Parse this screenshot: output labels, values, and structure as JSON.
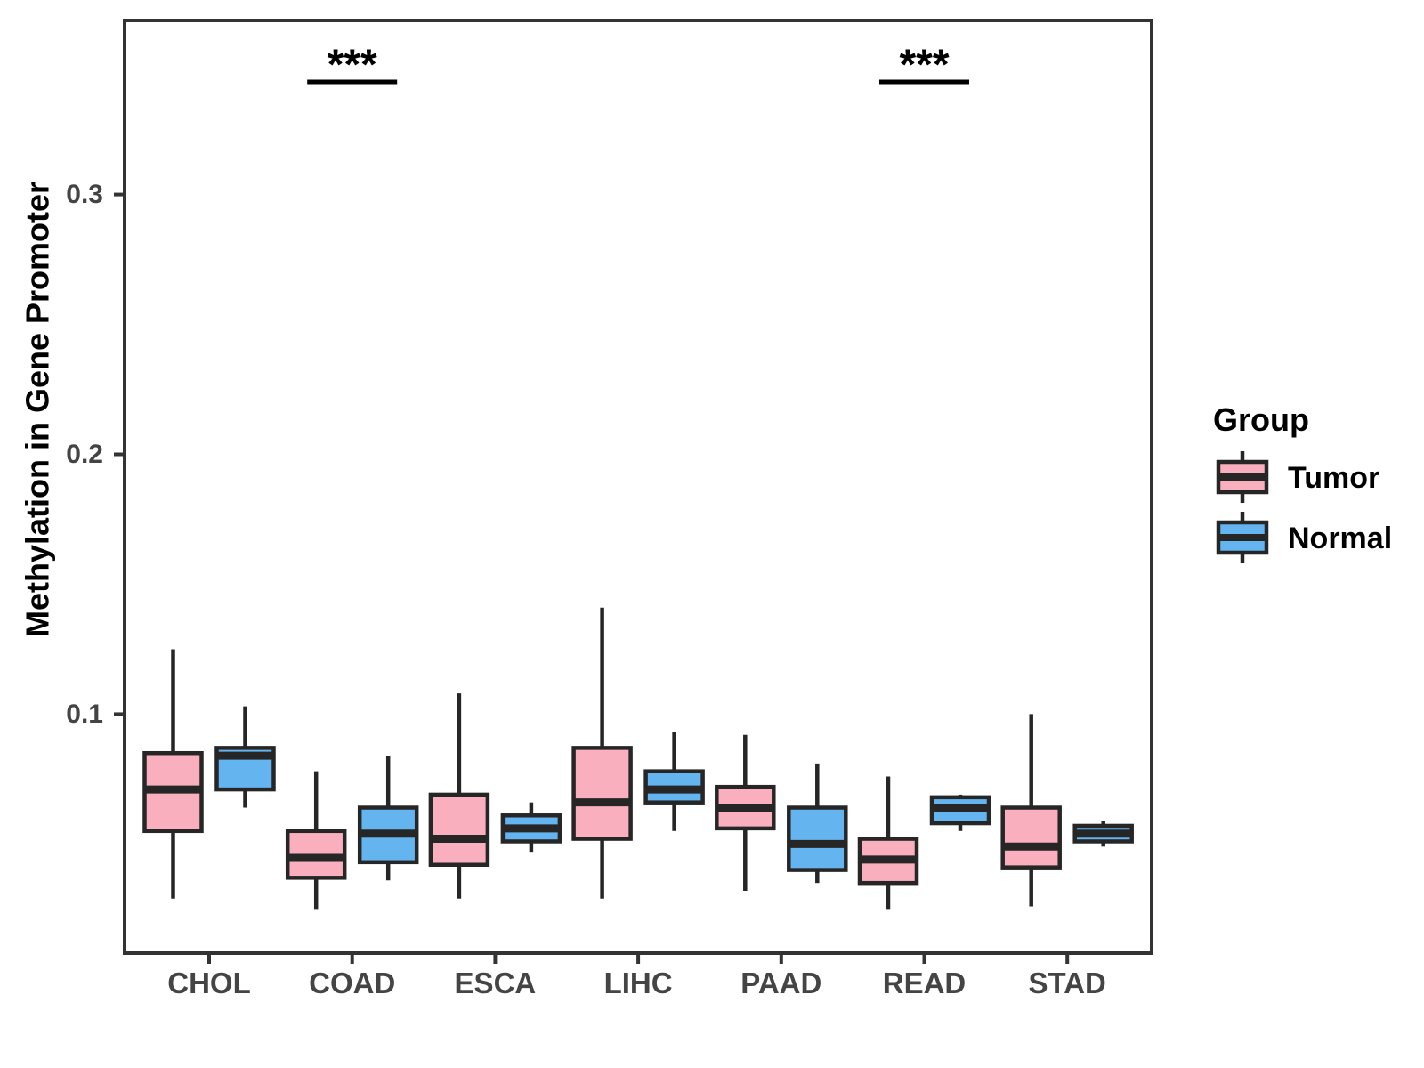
{
  "figure": {
    "background": "#FFFFFF"
  },
  "chart_data": {
    "type": "boxplot",
    "title": "",
    "xlabel": "",
    "ylabel": "Methylation in Gene Promoter",
    "categories": [
      "CHOL",
      "COAD",
      "ESCA",
      "LIHC",
      "PAAD",
      "READ",
      "STAD"
    ],
    "ytick_values": [
      0.1,
      0.2,
      0.3
    ],
    "ytick_labels": [
      "0.1",
      "0.2",
      "0.3"
    ],
    "ylim": [
      0.008,
      0.367
    ],
    "grid": false,
    "legend": {
      "title": "Group",
      "position": "right",
      "entries": [
        {
          "label": "Tumor",
          "fill": "#FAAFBE"
        },
        {
          "label": "Normal",
          "fill": "#64B4F0"
        }
      ]
    },
    "significance": [
      {
        "category": "COAD",
        "label": "***"
      },
      {
        "category": "READ",
        "label": "***"
      }
    ],
    "series": [
      {
        "name": "Tumor",
        "fill": "#FAAFBE",
        "boxes": [
          {
            "category": "CHOL",
            "whisker_low": 0.029,
            "q1": 0.055,
            "median": 0.071,
            "q3": 0.085,
            "whisker_high": 0.125
          },
          {
            "category": "COAD",
            "whisker_low": 0.025,
            "q1": 0.037,
            "median": 0.045,
            "q3": 0.055,
            "whisker_high": 0.078
          },
          {
            "category": "ESCA",
            "whisker_low": 0.029,
            "q1": 0.042,
            "median": 0.052,
            "q3": 0.069,
            "whisker_high": 0.108
          },
          {
            "category": "LIHC",
            "whisker_low": 0.029,
            "q1": 0.052,
            "median": 0.066,
            "q3": 0.087,
            "whisker_high": 0.141
          },
          {
            "category": "PAAD",
            "whisker_low": 0.032,
            "q1": 0.056,
            "median": 0.064,
            "q3": 0.072,
            "whisker_high": 0.092
          },
          {
            "category": "READ",
            "whisker_low": 0.025,
            "q1": 0.035,
            "median": 0.044,
            "q3": 0.052,
            "whisker_high": 0.076
          },
          {
            "category": "STAD",
            "whisker_low": 0.026,
            "q1": 0.041,
            "median": 0.049,
            "q3": 0.064,
            "whisker_high": 0.1
          }
        ]
      },
      {
        "name": "Normal",
        "fill": "#64B4F0",
        "boxes": [
          {
            "category": "CHOL",
            "whisker_low": 0.064,
            "q1": 0.071,
            "median": 0.084,
            "q3": 0.087,
            "whisker_high": 0.103
          },
          {
            "category": "COAD",
            "whisker_low": 0.036,
            "q1": 0.043,
            "median": 0.054,
            "q3": 0.064,
            "whisker_high": 0.084
          },
          {
            "category": "ESCA",
            "whisker_low": 0.047,
            "q1": 0.051,
            "median": 0.056,
            "q3": 0.061,
            "whisker_high": 0.066
          },
          {
            "category": "LIHC",
            "whisker_low": 0.055,
            "q1": 0.066,
            "median": 0.071,
            "q3": 0.078,
            "whisker_high": 0.093
          },
          {
            "category": "PAAD",
            "whisker_low": 0.035,
            "q1": 0.04,
            "median": 0.05,
            "q3": 0.064,
            "whisker_high": 0.081
          },
          {
            "category": "READ",
            "whisker_low": 0.055,
            "q1": 0.058,
            "median": 0.064,
            "q3": 0.068,
            "whisker_high": 0.069
          },
          {
            "category": "STAD",
            "whisker_low": 0.049,
            "q1": 0.051,
            "median": 0.054,
            "q3": 0.057,
            "whisker_high": 0.059
          }
        ]
      }
    ],
    "colors": {
      "box_stroke": "#262626",
      "panel_border": "#333333",
      "tick_mark": "#333333",
      "axis_text": "#444444",
      "axis_title": "#000000",
      "legend_text": "#000000",
      "significance": "#000000"
    }
  }
}
